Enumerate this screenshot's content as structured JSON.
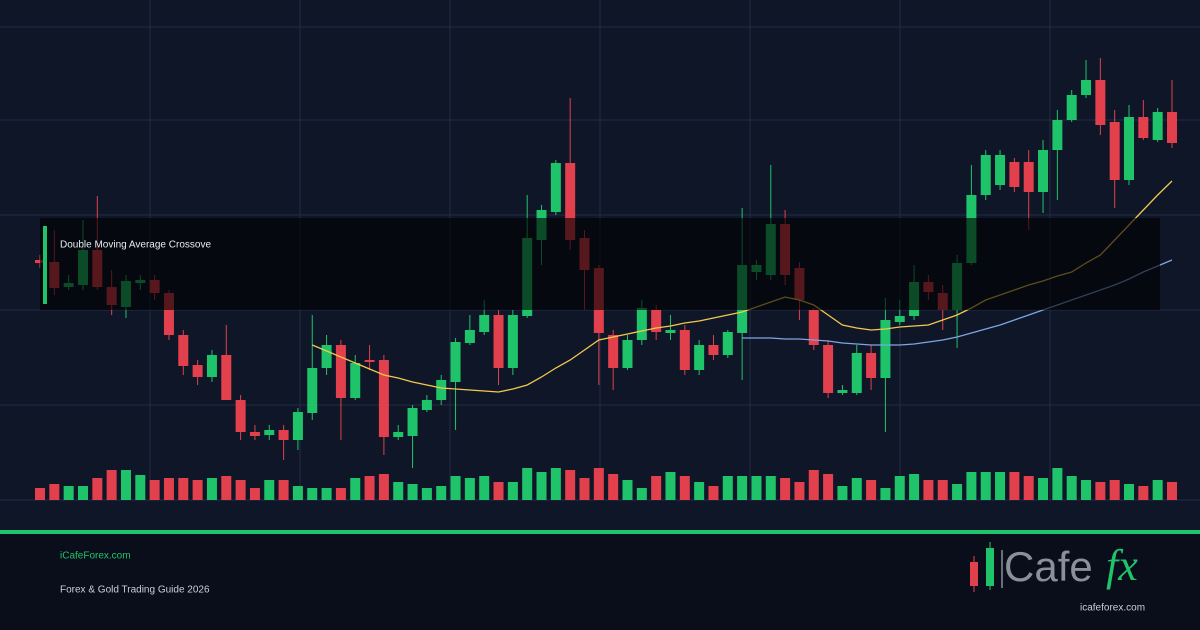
{
  "chart_data": {
    "type": "candlestick",
    "overlay_label": "Double Moving Average Crossove",
    "up_color": "#1fc46a",
    "down_color": "#e2404c",
    "ylim": [
      0,
      475
    ],
    "volume_ylim": [
      0,
      100
    ],
    "open": [
      240,
      238,
      213,
      215,
      250,
      213,
      193,
      217,
      220,
      207,
      165,
      135,
      123,
      145,
      100,
      68,
      65,
      70,
      60,
      87,
      132,
      155,
      102,
      140,
      140,
      63,
      64,
      90,
      100,
      118,
      157,
      168,
      185,
      132,
      184,
      260,
      288,
      337,
      262,
      232,
      165,
      132,
      160,
      190,
      167,
      170,
      130,
      155,
      145,
      167,
      228,
      225,
      276,
      232,
      190,
      155,
      107,
      107,
      147,
      122,
      178,
      184,
      218,
      207,
      190,
      237,
      305,
      315,
      338,
      338,
      308,
      350,
      380,
      405,
      420,
      378,
      320,
      383,
      360,
      388
    ],
    "high": [
      245,
      270,
      225,
      280,
      304,
      230,
      225,
      225,
      225,
      210,
      170,
      140,
      150,
      175,
      105,
      75,
      75,
      75,
      92,
      185,
      165,
      160,
      145,
      155,
      145,
      75,
      95,
      105,
      125,
      162,
      185,
      200,
      190,
      190,
      305,
      295,
      340,
      402,
      270,
      235,
      170,
      165,
      200,
      195,
      185,
      175,
      160,
      165,
      170,
      292,
      240,
      335,
      290,
      238,
      192,
      160,
      115,
      155,
      155,
      202,
      200,
      235,
      225,
      215,
      245,
      335,
      350,
      350,
      342,
      350,
      360,
      390,
      410,
      440,
      442,
      390,
      395,
      400,
      392,
      420
    ],
    "low": [
      232,
      205,
      210,
      210,
      210,
      185,
      182,
      210,
      200,
      160,
      125,
      115,
      118,
      100,
      60,
      60,
      60,
      40,
      50,
      80,
      125,
      60,
      100,
      130,
      45,
      60,
      32,
      88,
      95,
      70,
      155,
      165,
      115,
      125,
      182,
      235,
      285,
      250,
      190,
      115,
      110,
      130,
      155,
      160,
      160,
      125,
      125,
      140,
      142,
      120,
      220,
      220,
      215,
      180,
      150,
      102,
      105,
      105,
      110,
      68,
      175,
      180,
      200,
      170,
      152,
      235,
      300,
      310,
      308,
      270,
      287,
      300,
      378,
      402,
      365,
      292,
      315,
      360,
      358,
      352
    ],
    "close": [
      237,
      212,
      217,
      250,
      213,
      195,
      219,
      220,
      207,
      165,
      134,
      123,
      145,
      100,
      68,
      64,
      70,
      60,
      88,
      132,
      155,
      102,
      137,
      138,
      63,
      68,
      92,
      100,
      120,
      158,
      170,
      185,
      132,
      185,
      262,
      290,
      337,
      260,
      230,
      167,
      132,
      160,
      192,
      168,
      170,
      130,
      155,
      145,
      168,
      235,
      235,
      276,
      225,
      200,
      155,
      107,
      110,
      147,
      122,
      180,
      184,
      218,
      208,
      190,
      237,
      305,
      345,
      345,
      313,
      308,
      350,
      380,
      405,
      420,
      375,
      320,
      383,
      362,
      388,
      357
    ],
    "volume": [
      12,
      16,
      14,
      14,
      22,
      30,
      30,
      25,
      20,
      22,
      22,
      20,
      22,
      24,
      20,
      12,
      20,
      20,
      14,
      12,
      12,
      12,
      22,
      24,
      26,
      18,
      16,
      12,
      14,
      24,
      22,
      24,
      18,
      18,
      32,
      28,
      32,
      30,
      22,
      32,
      26,
      20,
      12,
      24,
      28,
      24,
      18,
      14,
      24,
      24,
      24,
      24,
      22,
      18,
      30,
      26,
      14,
      22,
      20,
      12,
      24,
      26,
      20,
      20,
      16,
      28,
      28,
      28,
      28,
      24,
      22,
      32,
      24,
      20,
      18,
      20,
      16,
      14,
      20,
      18
    ],
    "series": [
      {
        "color": "#f2c94c",
        "values": [
          null,
          null,
          null,
          null,
          null,
          null,
          null,
          null,
          null,
          null,
          null,
          null,
          null,
          null,
          null,
          null,
          null,
          null,
          null,
          155,
          149,
          143,
          137,
          131,
          125,
          122,
          118,
          115,
          112,
          111,
          110,
          109,
          108,
          111,
          115,
          123,
          132,
          140,
          150,
          160,
          163,
          166,
          169,
          172,
          174,
          177,
          179,
          182,
          185,
          188,
          193,
          198,
          203,
          200,
          195,
          185,
          175,
          172,
          170,
          171,
          173,
          174,
          175,
          180,
          185,
          192,
          200,
          205,
          210,
          215,
          219,
          224,
          228,
          237,
          245,
          260,
          275,
          290,
          305,
          319
        ]
      },
      {
        "color": "#7ea6e0",
        "values": [
          null,
          null,
          null,
          null,
          null,
          null,
          null,
          null,
          null,
          null,
          null,
          null,
          null,
          null,
          null,
          null,
          null,
          null,
          null,
          null,
          null,
          null,
          null,
          null,
          null,
          null,
          null,
          null,
          null,
          null,
          null,
          null,
          null,
          null,
          null,
          null,
          null,
          null,
          null,
          null,
          null,
          null,
          null,
          null,
          null,
          null,
          null,
          null,
          null,
          162,
          162,
          162,
          161,
          161,
          160,
          159,
          157,
          156,
          155,
          155,
          155,
          156,
          158,
          160,
          163,
          167,
          171,
          175,
          180,
          185,
          190,
          195,
          200,
          205,
          210,
          215,
          221,
          228,
          234,
          240
        ]
      }
    ]
  },
  "footer": {
    "site": "iCafeForex.com",
    "tagline": "Forex & Gold Trading Guide 2026"
  },
  "logo": {
    "text": "Cafe",
    "accent": "fx",
    "url": "icafeforex.com"
  }
}
